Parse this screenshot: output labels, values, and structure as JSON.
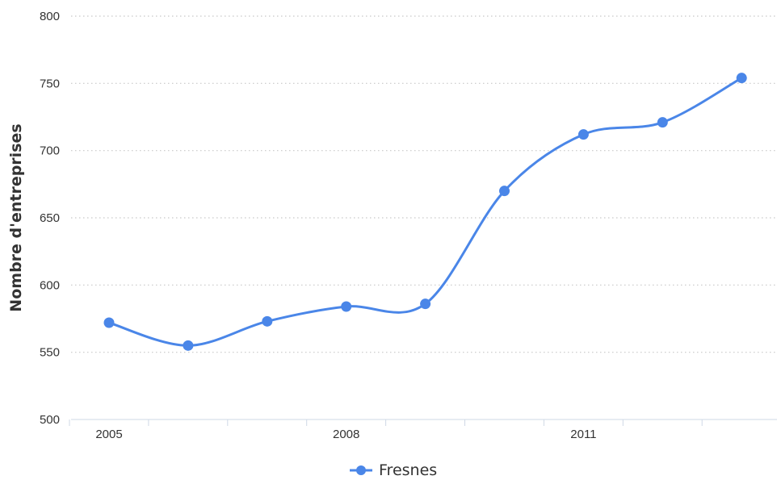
{
  "chart_data": {
    "type": "line",
    "title": "",
    "xlabel": "",
    "ylabel": "Nombre d'entreprises",
    "x": [
      2005,
      2006,
      2007,
      2008,
      2009,
      2010,
      2011,
      2012,
      2013
    ],
    "x_tick_labels": [
      "2005",
      "2008",
      "2011"
    ],
    "y_tick_labels": [
      "500",
      "550",
      "600",
      "650",
      "700",
      "750",
      "800"
    ],
    "ylim": [
      500,
      800
    ],
    "grid": "horizontal dotted",
    "legend_position": "bottom-center",
    "series": [
      {
        "name": "Fresnes",
        "color": "#4a86e8",
        "values": [
          572,
          555,
          573,
          584,
          586,
          670,
          712,
          721,
          754
        ]
      }
    ]
  }
}
